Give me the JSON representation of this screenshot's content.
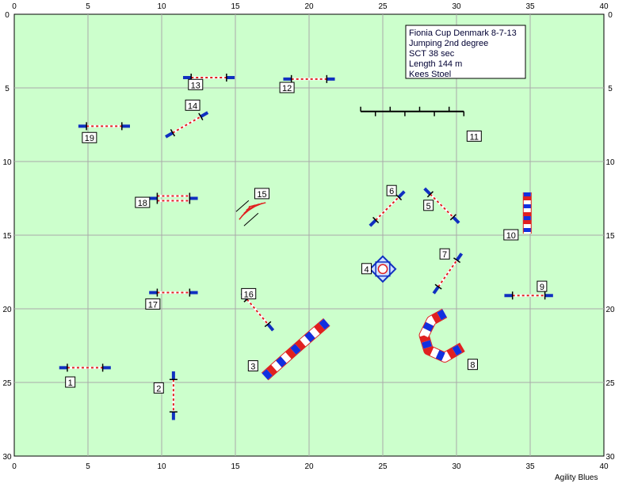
{
  "course": {
    "info_lines": [
      "Fionia Cup Denmark 8-7-13",
      "Jumping 2nd degree",
      "SCT 38 sec",
      "Length 144 m",
      "Kees Stoel"
    ],
    "credit": "Agility Blues",
    "colors": {
      "field": "#ccffcc",
      "grid": "#aaaaaa",
      "wing": "#1030c0",
      "bar_red": "#e02020",
      "tunnel_red": "#e02020",
      "tunnel_blue": "#1030e0"
    }
  },
  "axes": {
    "x_range": [
      0,
      40
    ],
    "y_range": [
      0,
      30
    ],
    "x_ticks": [
      "0",
      "5",
      "10",
      "15",
      "20",
      "25",
      "30",
      "35",
      "40"
    ],
    "y_ticks": [
      "0",
      "5",
      "10",
      "15",
      "20",
      "25",
      "30"
    ],
    "grid": true
  },
  "obstacles": [
    {
      "label": "1",
      "type": "jump",
      "x": 4.8,
      "y": 24.0,
      "angle": 0,
      "length": 2.4,
      "lx": 3.8,
      "ly": 25.0
    },
    {
      "label": "2",
      "type": "jump",
      "x": 10.8,
      "y": 25.9,
      "angle": 90,
      "length": 2.2,
      "lx": 9.8,
      "ly": 25.4
    },
    {
      "label": "3",
      "type": "tunnel",
      "points": [
        [
          17.0,
          24.6
        ],
        [
          19.0,
          22.8
        ],
        [
          21.2,
          20.9
        ]
      ],
      "lx": 16.2,
      "ly": 23.9
    },
    {
      "label": "4",
      "type": "table",
      "x": 25.0,
      "y": 17.3,
      "size": 1.3,
      "lx": 23.9,
      "ly": 17.3
    },
    {
      "label": "5",
      "type": "jump",
      "x": 29.0,
      "y": 13.0,
      "angle": 45,
      "length": 2.2,
      "lx": 28.1,
      "ly": 13.0
    },
    {
      "label": "6",
      "type": "jump",
      "x": 25.3,
      "y": 13.2,
      "angle": -45,
      "length": 2.2,
      "lx": 25.6,
      "ly": 12.0
    },
    {
      "label": "7",
      "type": "jump",
      "x": 29.4,
      "y": 17.6,
      "angle": -55,
      "length": 2.2,
      "lx": 29.2,
      "ly": 16.3
    },
    {
      "label": "8",
      "type": "tunnel",
      "points": [
        [
          29.2,
          20.3
        ],
        [
          28.3,
          20.8
        ],
        [
          27.8,
          21.8
        ],
        [
          28.1,
          22.8
        ],
        [
          29.2,
          23.3
        ],
        [
          30.4,
          22.6
        ]
      ],
      "lx": 31.1,
      "ly": 23.8
    },
    {
      "label": "9",
      "type": "jump",
      "x": 34.9,
      "y": 19.1,
      "angle": 0,
      "length": 2.2,
      "lx": 35.8,
      "ly": 18.5
    },
    {
      "label": "10",
      "type": "tunnel_straight",
      "x": 34.8,
      "y": 12.1,
      "x2": 34.8,
      "y2": 14.9,
      "lx": 33.7,
      "ly": 15.0
    },
    {
      "label": "11",
      "type": "long_jump",
      "x": 27.0,
      "y": 6.6,
      "length": 7.0,
      "lx": 31.2,
      "ly": 8.3
    },
    {
      "label": "12",
      "type": "jump",
      "x": 20.0,
      "y": 4.4,
      "angle": 0,
      "length": 2.4,
      "lx": 18.5,
      "ly": 5.0
    },
    {
      "label": "13",
      "type": "jump",
      "x": 13.2,
      "y": 4.3,
      "angle": 0,
      "length": 2.4,
      "lx": 12.3,
      "ly": 4.8
    },
    {
      "label": "14",
      "type": "jump",
      "x": 11.7,
      "y": 7.5,
      "angle": -30,
      "length": 2.2,
      "lx": 12.1,
      "ly": 6.2
    },
    {
      "label": "15",
      "type": "weave_fan",
      "x": 15.8,
      "y": 13.4,
      "lx": 16.8,
      "ly": 12.2
    },
    {
      "label": "16",
      "type": "jump",
      "x": 16.5,
      "y": 20.2,
      "angle": 50,
      "length": 2.2,
      "lx": 15.9,
      "ly": 19.0
    },
    {
      "label": "17",
      "type": "jump",
      "x": 10.8,
      "y": 18.9,
      "angle": 0,
      "length": 2.2,
      "lx": 9.4,
      "ly": 19.7
    },
    {
      "label": "18",
      "type": "double_jump",
      "x": 10.8,
      "y": 12.5,
      "angle": 0,
      "length": 2.2,
      "lx": 8.7,
      "ly": 12.8
    },
    {
      "label": "19",
      "type": "jump",
      "x": 6.1,
      "y": 7.6,
      "angle": 0,
      "length": 2.4,
      "lx": 5.1,
      "ly": 8.4
    }
  ]
}
